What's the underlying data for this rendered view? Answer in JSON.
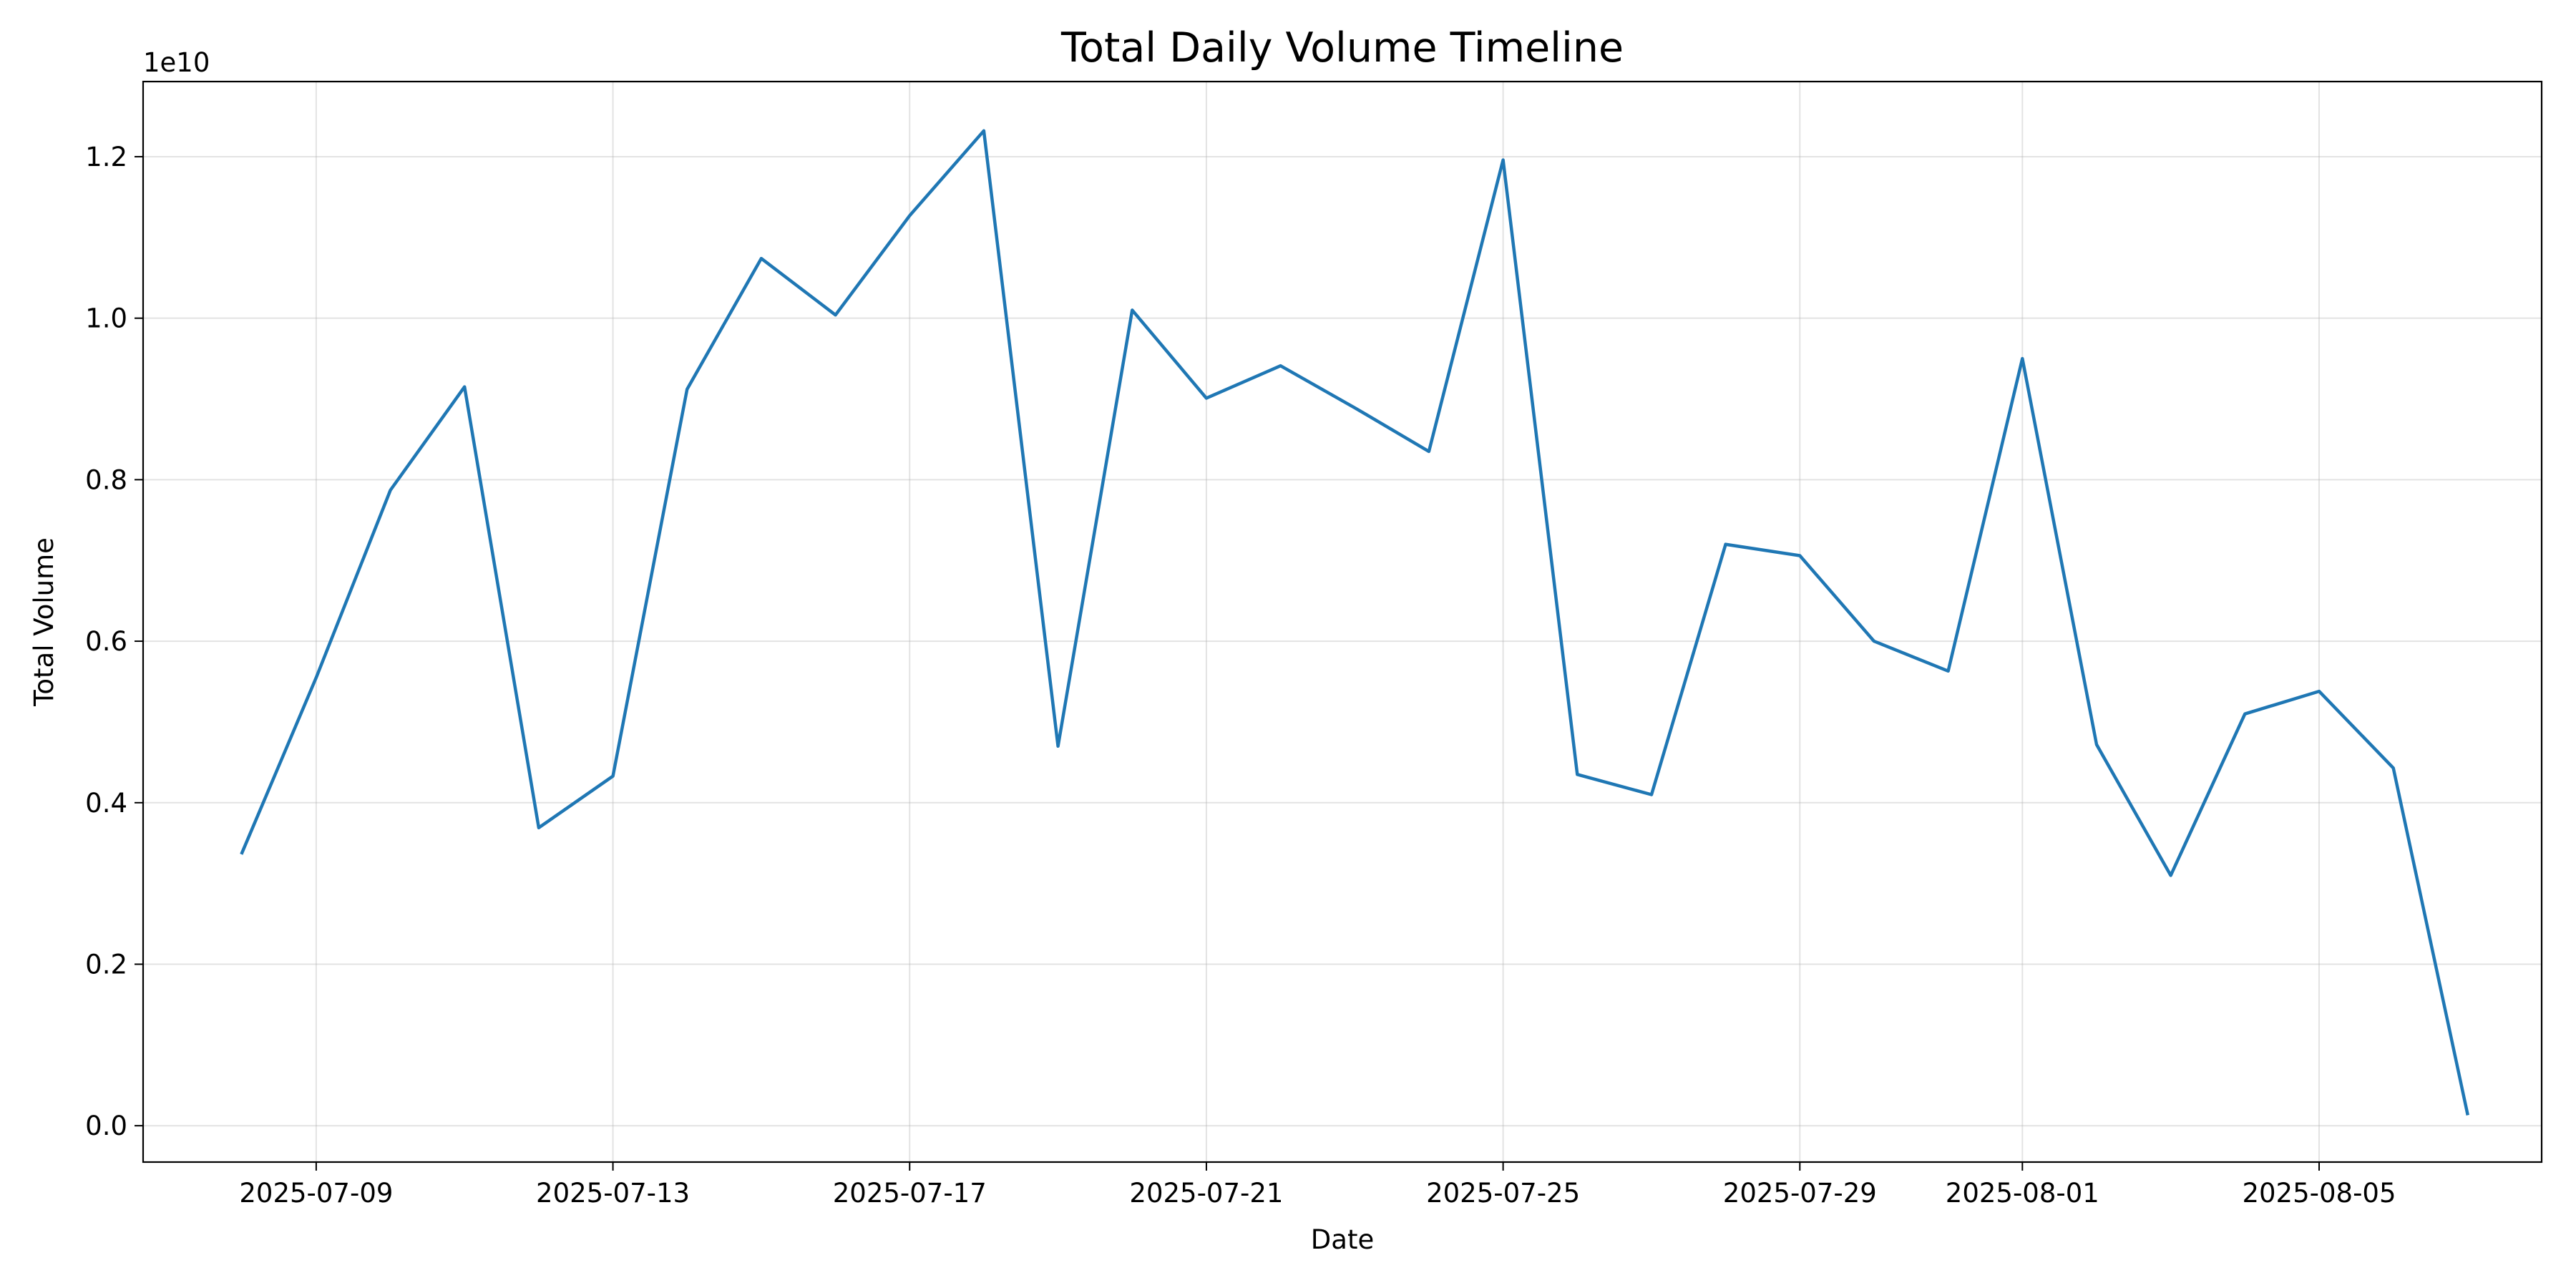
{
  "chart_data": {
    "type": "line",
    "title": "Total Daily Volume Timeline",
    "xlabel": "Date",
    "ylabel": "Total Volume",
    "y_offset_label": "1e10",
    "x_scale": "date",
    "xlim": [
      "2025-07-06T16:00",
      "2025-08-08T00:00"
    ],
    "ylim": [
      -0.045,
      1.293
    ],
    "y_unit_multiplier": 10000000000,
    "x_ticks": [
      "2025-07-09",
      "2025-07-13",
      "2025-07-17",
      "2025-07-21",
      "2025-07-25",
      "2025-07-29",
      "2025-08-01",
      "2025-08-05"
    ],
    "y_ticks": [
      0.0,
      0.2,
      0.4,
      0.6,
      0.8,
      1.0,
      1.2
    ],
    "y_tick_labels": [
      "0.0",
      "0.2",
      "0.4",
      "0.6",
      "0.8",
      "1.0",
      "1.2"
    ],
    "grid": true,
    "legend": "none",
    "series": [
      {
        "color": "#1f77b4",
        "x": [
          "2025-07-08",
          "2025-07-09",
          "2025-07-10",
          "2025-07-11",
          "2025-07-12",
          "2025-07-13",
          "2025-07-14",
          "2025-07-15",
          "2025-07-16",
          "2025-07-17",
          "2025-07-18",
          "2025-07-19",
          "2025-07-20",
          "2025-07-21",
          "2025-07-22",
          "2025-07-23",
          "2025-07-24",
          "2025-07-25",
          "2025-07-26",
          "2025-07-27",
          "2025-07-28",
          "2025-07-29",
          "2025-07-30",
          "2025-07-31",
          "2025-08-01",
          "2025-08-02",
          "2025-08-03",
          "2025-08-04",
          "2025-08-05",
          "2025-08-06",
          "2025-08-07"
        ],
        "y": [
          0.338,
          0.555,
          0.787,
          0.915,
          0.369,
          0.433,
          0.912,
          1.074,
          1.004,
          1.127,
          1.232,
          0.47,
          1.01,
          0.901,
          0.941,
          0.889,
          0.835,
          1.196,
          0.435,
          0.41,
          0.72,
          0.706,
          0.6,
          0.563,
          0.95,
          0.472,
          0.31,
          0.51,
          0.538,
          0.443,
          0.015
        ]
      }
    ]
  }
}
